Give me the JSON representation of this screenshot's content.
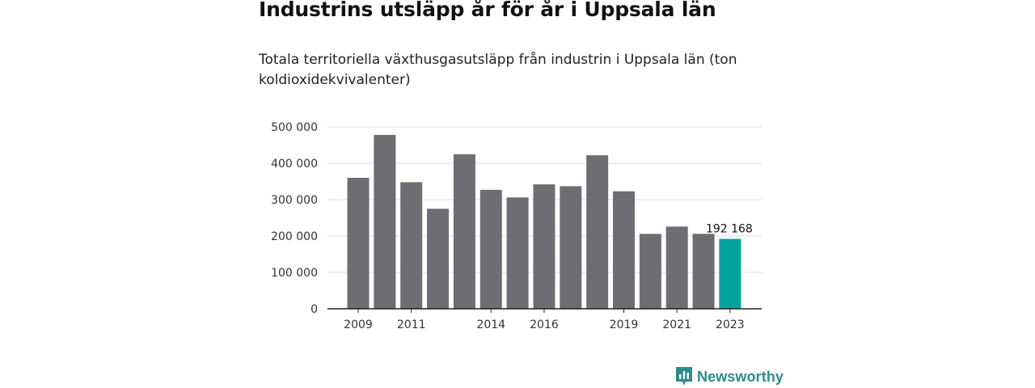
{
  "header": {
    "title": "Industrins utsläpp år för år i Uppsala län",
    "subtitle": "Totala territoriella växthusgasutsläpp från industrin i Uppsala län (ton koldioxidekvivalenter)"
  },
  "brand": {
    "name": "Newsworthy",
    "icon": "chart-logo-icon",
    "color": "#2b8c8c"
  },
  "chart_data": {
    "type": "bar",
    "title": "Industrins utsläpp år för år i Uppsala län",
    "subtitle": "Totala territoriella växthusgasutsläpp från industrin i Uppsala län (ton koldioxidekvivalenter)",
    "xlabel": "",
    "ylabel": "",
    "ylim": [
      0,
      500000
    ],
    "y_ticks": [
      0,
      100000,
      200000,
      300000,
      400000,
      500000
    ],
    "y_tick_labels": [
      "0",
      "100 000",
      "200 000",
      "300 000",
      "400 000",
      "500 000"
    ],
    "categories": [
      "2009",
      "2010",
      "2011",
      "2012",
      "2013",
      "2014",
      "2015",
      "2016",
      "2017",
      "2018",
      "2019",
      "2020",
      "2021",
      "2022",
      "2023"
    ],
    "x_tick_labels_shown": [
      "2009",
      "2011",
      "2014",
      "2016",
      "2019",
      "2021",
      "2023"
    ],
    "values": [
      360000,
      478000,
      348000,
      275000,
      425000,
      327000,
      306000,
      342000,
      337000,
      422000,
      323000,
      206000,
      226000,
      206000,
      192168
    ],
    "highlight": {
      "category": "2023",
      "label": "192 168",
      "color": "#00a39b"
    },
    "bar_color": "#6e6d72",
    "grid": true,
    "legend": "none"
  }
}
